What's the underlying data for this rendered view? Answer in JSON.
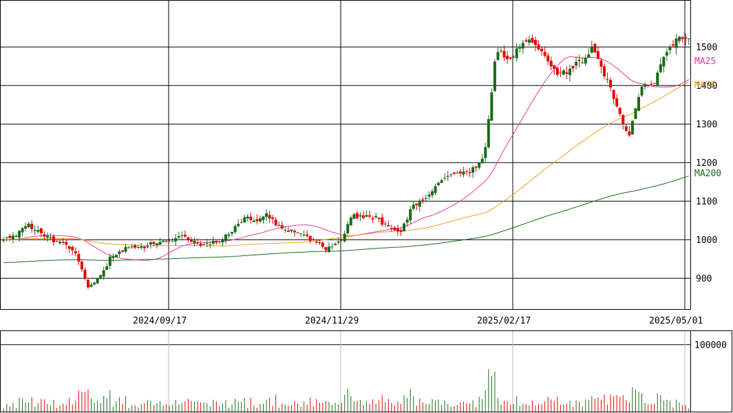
{
  "chart_data": {
    "type": "candlestick",
    "price_axis": {
      "ylim": [
        820,
        1620
      ],
      "ticks": [
        900,
        1000,
        1100,
        1200,
        1300,
        1400,
        1500
      ]
    },
    "date_axis": {
      "labels": [
        "2024/09/17",
        "2024/11/29",
        "2025/02/17",
        "2025/05/01"
      ]
    },
    "moving_averages": [
      {
        "name": "MA25",
        "color": "#e8389a"
      },
      {
        "name": "MA75",
        "color": "#f0a020"
      },
      {
        "name": "MA200",
        "color": "#1a6a1a"
      }
    ],
    "colors": {
      "up": "#1a6a1a",
      "down": "#e60000",
      "grid": "#000000"
    },
    "volume_axis": {
      "ylim": [
        0,
        110000
      ],
      "ticks": [
        100000
      ]
    },
    "anchor_closes": [
      1005,
      1015,
      1040,
      1020,
      1000,
      990,
      960,
      880,
      900,
      960,
      975,
      980,
      985,
      995,
      1000,
      1010,
      990,
      985,
      1000,
      1020,
      1060,
      1050,
      1065,
      1030,
      1020,
      1015,
      990,
      975,
      995,
      1060,
      1060,
      1055,
      1030,
      1015,
      1085,
      1110,
      1140,
      1170,
      1170,
      1180,
      1210,
      1500,
      1460,
      1510,
      1520,
      1470,
      1430,
      1440,
      1460,
      1500,
      1430,
      1350,
      1260,
      1400,
      1400,
      1480,
      1520,
      1515
    ]
  }
}
